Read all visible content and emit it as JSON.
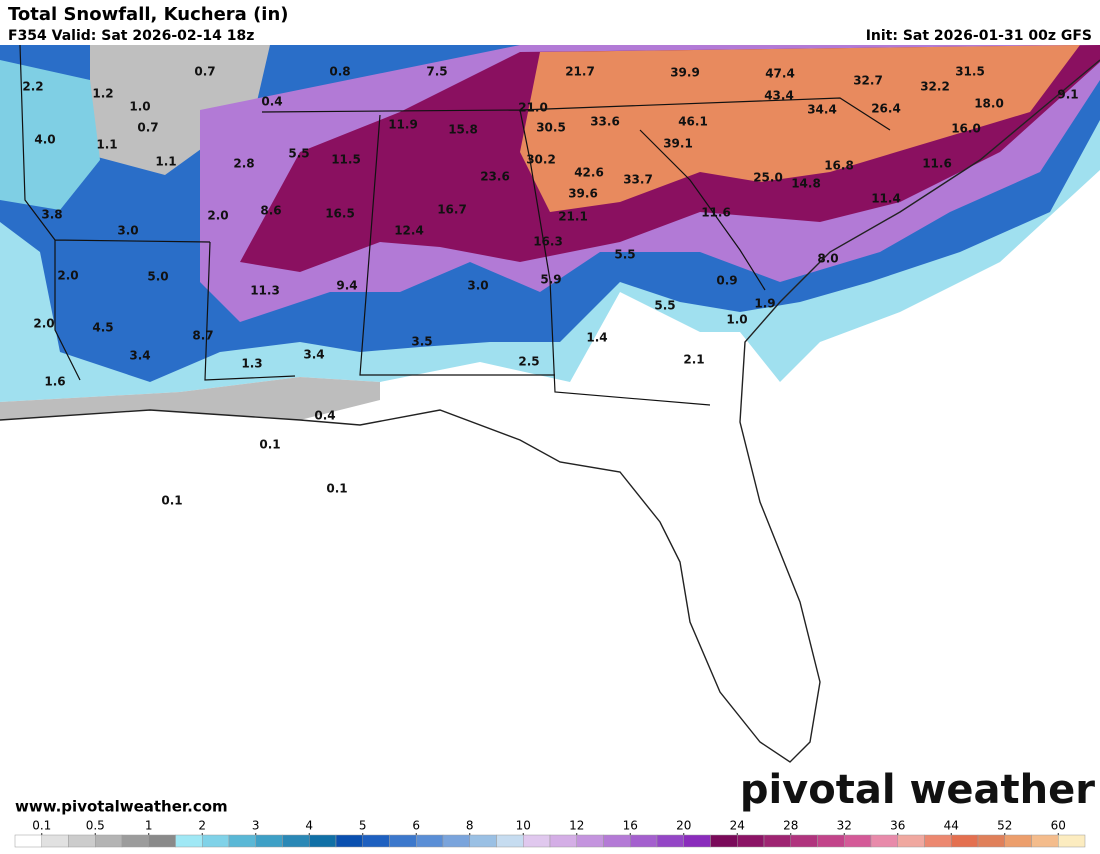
{
  "header": {
    "title": "Total Snowfall, Kuchera (in)",
    "valid": "F354 Valid: Sat 2026-02-14 18z",
    "init": "Init: Sat 2026-01-31 00z GFS"
  },
  "map": {
    "point_labels": [
      "2.2",
      "1.2",
      "0.7",
      "0.8",
      "7.5",
      "21.7",
      "39.9",
      "47.4",
      "32.7",
      "31.5",
      "32.2",
      "0.4",
      "1.0",
      "43.4",
      "21.0",
      "9.1",
      "0.7",
      "4.0",
      "11.9",
      "15.8",
      "30.5",
      "33.6",
      "46.1",
      "34.4",
      "26.4",
      "18.0",
      "16.0",
      "1.1",
      "39.1",
      "5.5",
      "11.5",
      "30.2",
      "1.1",
      "2.8",
      "11.6",
      "16.8",
      "42.6",
      "23.6",
      "33.7",
      "25.0",
      "14.8",
      "39.6",
      "11.4",
      "3.8",
      "2.0",
      "8.6",
      "16.5",
      "16.7",
      "21.1",
      "11.6",
      "3.0",
      "12.4",
      "16.3",
      "5.5",
      "8.0",
      "2.0",
      "5.0",
      "9.4",
      "3.0",
      "5.9",
      "0.9",
      "11.3",
      "1.9",
      "5.5",
      "2.0",
      "4.5",
      "1.0",
      "8.7",
      "1.4",
      "3.5",
      "3.4",
      "3.4",
      "2.5",
      "2.1",
      "1.3",
      "1.6",
      "0.4",
      "0.1",
      "0.1",
      "0.1"
    ]
  },
  "colorbar": {
    "ticks": [
      0.1,
      0.5,
      1,
      2,
      3,
      4,
      5,
      6,
      8,
      10,
      12,
      16,
      20,
      24,
      28,
      32,
      36,
      44,
      52,
      60
    ],
    "colors": [
      "#ffffff",
      "#e1e1e1",
      "#cccccc",
      "#b4b4b4",
      "#9c9c9c",
      "#8a8a8a",
      "#a0e8f5",
      "#80d2e8",
      "#5ab8d6",
      "#3ea0c6",
      "#2a88b6",
      "#1070a6",
      "#0a50b0",
      "#1e60c0",
      "#3c78cc",
      "#5a8ed6",
      "#7aa4dc",
      "#9ac0e4",
      "#c6dcf0",
      "#e0c8ee",
      "#d4aee6",
      "#c494de",
      "#b47ad6",
      "#a460ce",
      "#9446c6",
      "#8a2cbc",
      "#7a0a5a",
      "#8c1466",
      "#9e2472",
      "#b0347e",
      "#c2448a",
      "#d45a98",
      "#e88aaa",
      "#f0a8a0",
      "#ec8870",
      "#e47050",
      "#e0805a",
      "#ec9e6c",
      "#f4bc8c",
      "#fcecc0"
    ]
  },
  "footer": {
    "website": "www.pivotalweather.com",
    "watermark": "pivotal weather"
  }
}
